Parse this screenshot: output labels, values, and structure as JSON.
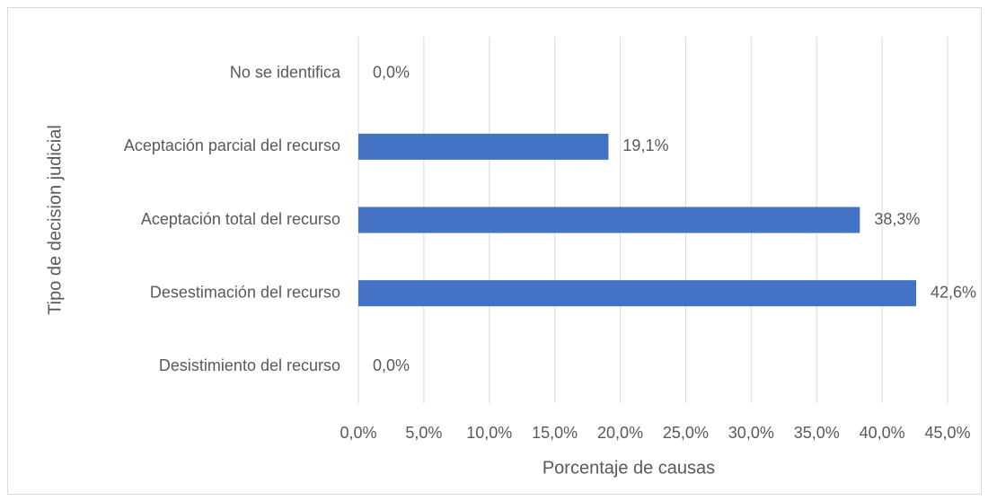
{
  "chart_data": {
    "type": "barh",
    "categories": [
      "No se identifica",
      "Aceptación parcial del recurso",
      "Aceptación total del recurso",
      "Desestimación del recurso",
      "Desistimiento del recurso"
    ],
    "values": [
      0.0,
      19.1,
      38.3,
      42.6,
      0.0
    ],
    "value_labels": [
      "0,0%",
      "19,1%",
      "38,3%",
      "42,6%",
      "0,0%"
    ],
    "color": "#4472c4",
    "xlabel": "Porcentaje de causas",
    "ylabel": "Tipo de decision judicial",
    "xlim": [
      0,
      45
    ],
    "xticks": [
      {
        "value": 0,
        "label": "0,0%"
      },
      {
        "value": 5,
        "label": "5,0%"
      },
      {
        "value": 10,
        "label": "10,0%"
      },
      {
        "value": 15,
        "label": "15,0%"
      },
      {
        "value": 20,
        "label": "20,0%"
      },
      {
        "value": 25,
        "label": "25,0%"
      },
      {
        "value": 30,
        "label": "30,0%"
      },
      {
        "value": 35,
        "label": "35,0%"
      },
      {
        "value": 40,
        "label": "40,0%"
      },
      {
        "value": 45,
        "label": "45,0%"
      }
    ],
    "grid": true
  }
}
